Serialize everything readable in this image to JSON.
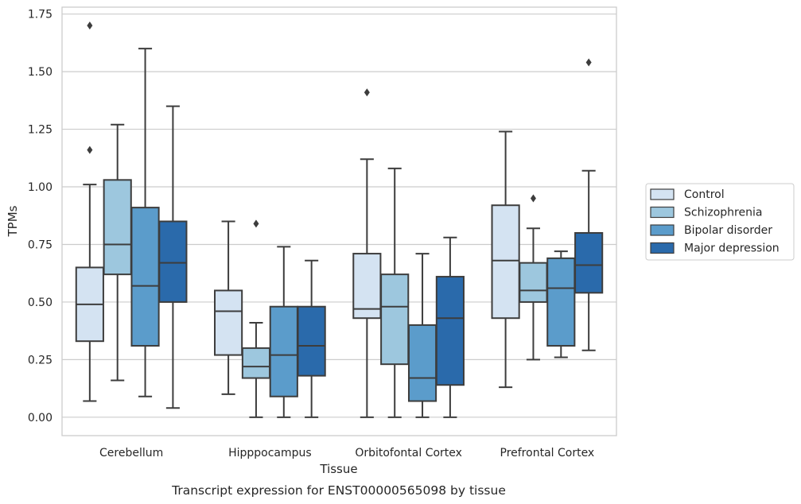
{
  "caption": "Transcript expression for ENST00000565098 by tissue",
  "chart_data": {
    "type": "boxplot",
    "xlabel": "Tissue",
    "ylabel": "TPMs",
    "ylim": [
      -0.08,
      1.78
    ],
    "yticks": [
      "0.00",
      "0.25",
      "0.50",
      "0.75",
      "1.00",
      "1.25",
      "1.50",
      "1.75"
    ],
    "grid": "horizontal",
    "legend_position": "right",
    "categories": [
      "Cerebellum",
      "Hipppocampus",
      "Orbitofontal Cortex",
      "Prefrontal Cortex"
    ],
    "series": [
      {
        "name": "Control",
        "color": "#d4e3f2",
        "boxes": [
          {
            "whislo": 0.07,
            "q1": 0.33,
            "med": 0.49,
            "q3": 0.65,
            "whishi": 1.01,
            "fliers": [
              1.16,
              1.7
            ]
          },
          {
            "whislo": 0.1,
            "q1": 0.27,
            "med": 0.46,
            "q3": 0.55,
            "whishi": 0.85,
            "fliers": []
          },
          {
            "whislo": 0.0,
            "q1": 0.43,
            "med": 0.47,
            "q3": 0.71,
            "whishi": 1.12,
            "fliers": [
              1.41
            ]
          },
          {
            "whislo": 0.13,
            "q1": 0.43,
            "med": 0.68,
            "q3": 0.92,
            "whishi": 1.24,
            "fliers": []
          }
        ]
      },
      {
        "name": "Schizophrenia",
        "color": "#9dc7de",
        "boxes": [
          {
            "whislo": 0.16,
            "q1": 0.62,
            "med": 0.75,
            "q3": 1.03,
            "whishi": 1.27,
            "fliers": []
          },
          {
            "whislo": 0.0,
            "q1": 0.17,
            "med": 0.22,
            "q3": 0.3,
            "whishi": 0.41,
            "fliers": [
              0.84
            ]
          },
          {
            "whislo": 0.0,
            "q1": 0.23,
            "med": 0.48,
            "q3": 0.62,
            "whishi": 1.08,
            "fliers": []
          },
          {
            "whislo": 0.25,
            "q1": 0.5,
            "med": 0.55,
            "q3": 0.67,
            "whishi": 0.82,
            "fliers": [
              0.95
            ]
          }
        ]
      },
      {
        "name": "Bipolar disorder",
        "color": "#5b9ccb",
        "boxes": [
          {
            "whislo": 0.09,
            "q1": 0.31,
            "med": 0.57,
            "q3": 0.91,
            "whishi": 1.6,
            "fliers": []
          },
          {
            "whislo": 0.0,
            "q1": 0.09,
            "med": 0.27,
            "q3": 0.48,
            "whishi": 0.74,
            "fliers": []
          },
          {
            "whislo": 0.0,
            "q1": 0.07,
            "med": 0.17,
            "q3": 0.4,
            "whishi": 0.71,
            "fliers": []
          },
          {
            "whislo": 0.26,
            "q1": 0.31,
            "med": 0.56,
            "q3": 0.69,
            "whishi": 0.72,
            "fliers": []
          }
        ]
      },
      {
        "name": "Major depression",
        "color": "#2a6aab",
        "boxes": [
          {
            "whislo": 0.04,
            "q1": 0.5,
            "med": 0.67,
            "q3": 0.85,
            "whishi": 1.35,
            "fliers": []
          },
          {
            "whislo": 0.0,
            "q1": 0.18,
            "med": 0.31,
            "q3": 0.48,
            "whishi": 0.68,
            "fliers": []
          },
          {
            "whislo": 0.0,
            "q1": 0.14,
            "med": 0.43,
            "q3": 0.61,
            "whishi": 0.78,
            "fliers": []
          },
          {
            "whislo": 0.29,
            "q1": 0.54,
            "med": 0.66,
            "q3": 0.8,
            "whishi": 1.07,
            "fliers": [
              1.54
            ]
          }
        ]
      }
    ]
  }
}
